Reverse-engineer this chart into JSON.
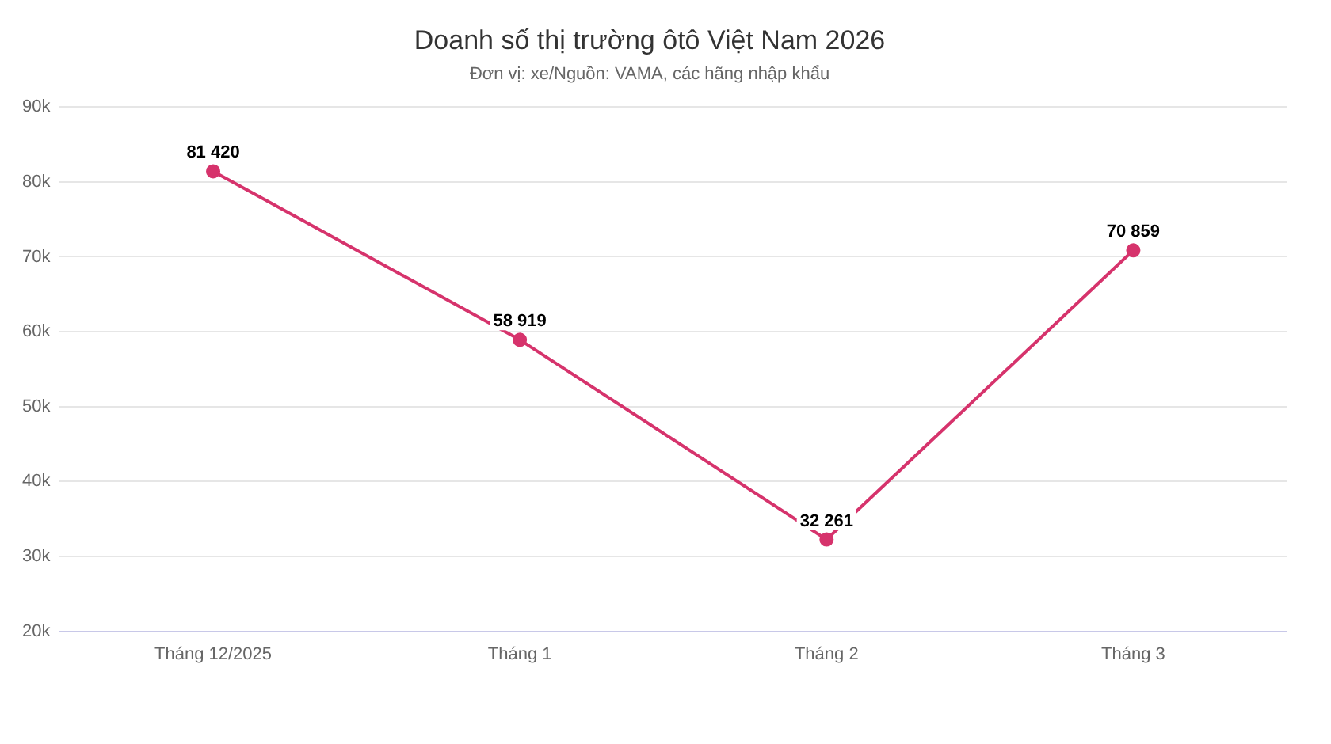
{
  "chart_data": {
    "type": "line",
    "title": "Doanh số thị trường ôtô Việt Nam 2026",
    "subtitle": "Đơn vị: xe/Nguồn: VAMA, các hãng nhập khẩu",
    "categories": [
      "Tháng 12/2025",
      "Tháng 1",
      "Tháng 2",
      "Tháng 3"
    ],
    "series": [
      {
        "color": "#d6336c",
        "values": [
          81420,
          58919,
          32261,
          70859
        ],
        "value_labels": [
          "81 420",
          "58 919",
          "32 261",
          "70 859"
        ]
      }
    ],
    "ylim": [
      20000,
      90000
    ],
    "yticks": [
      {
        "value": 20000,
        "label": "20k"
      },
      {
        "value": 30000,
        "label": "30k"
      },
      {
        "value": 40000,
        "label": "40k"
      },
      {
        "value": 50000,
        "label": "50k"
      },
      {
        "value": 60000,
        "label": "60k"
      },
      {
        "value": 70000,
        "label": "70k"
      },
      {
        "value": 80000,
        "label": "80k"
      },
      {
        "value": 90000,
        "label": "90k"
      }
    ],
    "grid": "y",
    "marker": "circle",
    "line_style": "solid",
    "legend": false
  }
}
